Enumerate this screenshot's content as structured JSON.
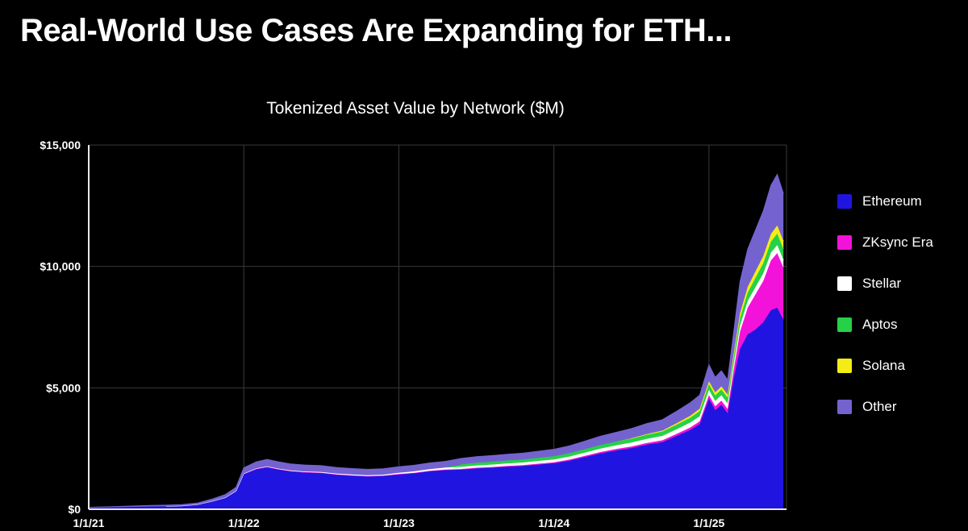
{
  "slide": {
    "title": "Real-World Use Cases Are Expanding for ETH..."
  },
  "chart_data": {
    "type": "area",
    "stacked": true,
    "title": "Tokenized Asset Value by Network ($M)",
    "background": "#000000",
    "grid": true,
    "grid_color": "#3a3a3a",
    "axis_color": "#e8e8e8",
    "text_color": "#ffffff",
    "legend_position": "right",
    "xlim": [
      2021.0,
      2025.5
    ],
    "ylim": [
      0,
      15000
    ],
    "x_ticks": [
      {
        "value": 2021.0,
        "label": "1/1/21"
      },
      {
        "value": 2022.0,
        "label": "1/1/22"
      },
      {
        "value": 2023.0,
        "label": "1/1/23"
      },
      {
        "value": 2024.0,
        "label": "1/1/24"
      },
      {
        "value": 2025.0,
        "label": "1/1/25"
      }
    ],
    "y_ticks": [
      {
        "value": 0,
        "label": "$0"
      },
      {
        "value": 5000,
        "label": "$5,000"
      },
      {
        "value": 10000,
        "label": "$10,000"
      },
      {
        "value": 15000,
        "label": "$15,000"
      }
    ],
    "x": [
      2021.0,
      2021.1,
      2021.2,
      2021.3,
      2021.4,
      2021.5,
      2021.6,
      2021.7,
      2021.8,
      2021.88,
      2021.95,
      2022.0,
      2022.08,
      2022.15,
      2022.22,
      2022.3,
      2022.4,
      2022.5,
      2022.6,
      2022.7,
      2022.8,
      2022.9,
      2023.0,
      2023.1,
      2023.2,
      2023.3,
      2023.4,
      2023.5,
      2023.6,
      2023.7,
      2023.8,
      2023.9,
      2024.0,
      2024.1,
      2024.2,
      2024.3,
      2024.4,
      2024.5,
      2024.6,
      2024.7,
      2024.8,
      2024.88,
      2024.94,
      2025.0,
      2025.04,
      2025.08,
      2025.12,
      2025.16,
      2025.2,
      2025.25,
      2025.3,
      2025.35,
      2025.4,
      2025.44,
      2025.48
    ],
    "series": [
      {
        "name": "Ethereum",
        "color": "#2015e0",
        "values": [
          60,
          70,
          85,
          100,
          115,
          120,
          135,
          190,
          330,
          470,
          740,
          1450,
          1650,
          1730,
          1640,
          1560,
          1510,
          1490,
          1420,
          1380,
          1350,
          1370,
          1430,
          1480,
          1560,
          1610,
          1630,
          1680,
          1710,
          1750,
          1780,
          1840,
          1890,
          2000,
          2150,
          2300,
          2420,
          2520,
          2660,
          2760,
          3040,
          3270,
          3500,
          4550,
          4080,
          4300,
          3950,
          5400,
          6600,
          7200,
          7400,
          7700,
          8200,
          8300,
          7800
        ]
      },
      {
        "name": "ZKsync Era",
        "color": "#f312d9",
        "values": [
          0,
          0,
          0,
          0,
          0,
          0,
          0,
          0,
          0,
          0,
          0,
          10,
          12,
          14,
          15,
          15,
          15,
          15,
          15,
          15,
          15,
          15,
          20,
          22,
          24,
          25,
          26,
          28,
          30,
          32,
          34,
          36,
          40,
          45,
          50,
          55,
          60,
          65,
          70,
          80,
          90,
          100,
          120,
          150,
          160,
          170,
          180,
          350,
          700,
          1100,
          1450,
          1700,
          2050,
          2250,
          2150
        ]
      },
      {
        "name": "Stellar",
        "color": "#ffffff",
        "values": [
          0,
          0,
          0,
          0,
          0,
          5,
          5,
          5,
          8,
          10,
          12,
          15,
          18,
          20,
          22,
          25,
          28,
          30,
          32,
          35,
          38,
          40,
          50,
          60,
          70,
          80,
          90,
          95,
          100,
          105,
          110,
          115,
          120,
          125,
          130,
          140,
          150,
          160,
          170,
          180,
          190,
          200,
          210,
          220,
          220,
          225,
          225,
          240,
          260,
          280,
          300,
          310,
          320,
          330,
          320
        ]
      },
      {
        "name": "Aptos",
        "color": "#26d147",
        "values": [
          0,
          0,
          0,
          0,
          0,
          0,
          0,
          0,
          0,
          0,
          0,
          0,
          0,
          0,
          0,
          0,
          0,
          0,
          0,
          0,
          0,
          0,
          0,
          0,
          0,
          0,
          100,
          110,
          115,
          120,
          125,
          130,
          135,
          140,
          145,
          150,
          155,
          160,
          170,
          180,
          190,
          200,
          210,
          230,
          230,
          235,
          235,
          260,
          300,
          340,
          380,
          420,
          450,
          470,
          450
        ]
      },
      {
        "name": "Solana",
        "color": "#f4ec15",
        "values": [
          0,
          0,
          0,
          0,
          0,
          0,
          0,
          0,
          0,
          0,
          0,
          0,
          0,
          0,
          0,
          0,
          0,
          0,
          0,
          0,
          0,
          0,
          0,
          0,
          0,
          0,
          0,
          0,
          0,
          0,
          0,
          0,
          0,
          0,
          0,
          0,
          0,
          20,
          30,
          40,
          60,
          80,
          100,
          120,
          125,
          130,
          135,
          160,
          200,
          240,
          270,
          300,
          320,
          340,
          330
        ]
      },
      {
        "name": "Other",
        "color": "#7463cf",
        "values": [
          20,
          25,
          30,
          35,
          40,
          45,
          50,
          60,
          90,
          120,
          150,
          230,
          270,
          290,
          280,
          270,
          265,
          260,
          250,
          245,
          240,
          245,
          250,
          250,
          255,
          255,
          245,
          250,
          255,
          255,
          260,
          270,
          285,
          300,
          330,
          360,
          380,
          400,
          430,
          450,
          500,
          540,
          560,
          680,
          620,
          640,
          600,
          900,
          1300,
          1550,
          1700,
          1850,
          2000,
          2100,
          1950
        ]
      }
    ]
  }
}
